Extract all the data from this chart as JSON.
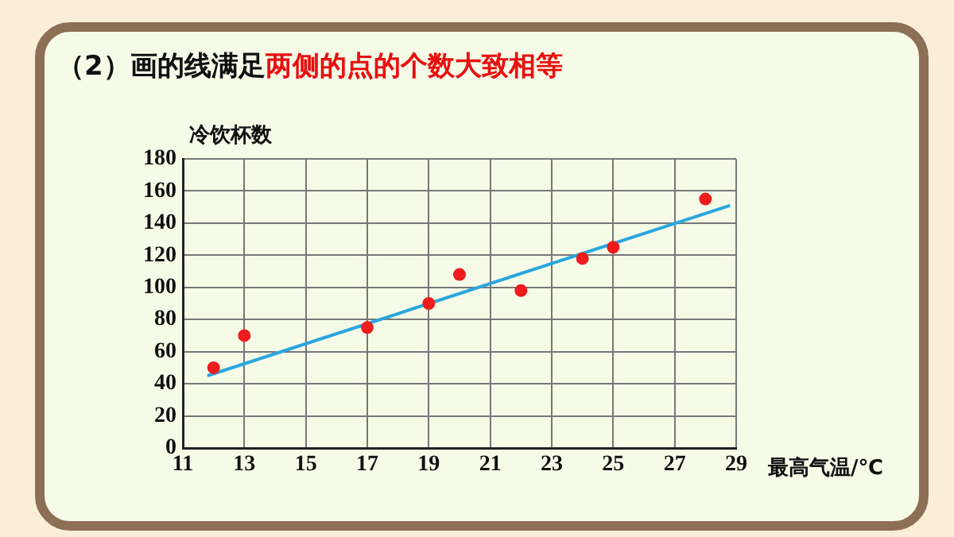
{
  "chart_data": {
    "type": "scatter",
    "title": "（2）画的线满足",
    "subtitle": "两侧的点的个数大致相等",
    "xlabel": "最高气温/℃",
    "ylabel": "冷饮杯数",
    "series": [
      {
        "type": "scatter",
        "marker": "circle",
        "color": "#ee1c1c",
        "x": [
          12,
          13,
          17,
          19,
          20,
          22,
          24,
          25,
          28
        ],
        "values": [
          50,
          70,
          75,
          90,
          108,
          98,
          118,
          125,
          155
        ]
      },
      {
        "type": "line",
        "marker": "none",
        "color": "#2aa6de",
        "x": [
          11.8,
          28.8
        ],
        "values": [
          45,
          151
        ]
      }
    ],
    "xlim": [
      11,
      29
    ],
    "xticks": [
      11,
      13,
      15,
      17,
      19,
      21,
      23,
      25,
      27,
      29
    ],
    "ylim": [
      0,
      180
    ],
    "yticks": [
      0,
      20,
      40,
      60,
      80,
      100,
      120,
      140,
      160,
      180
    ],
    "grid": true,
    "legend": false
  }
}
